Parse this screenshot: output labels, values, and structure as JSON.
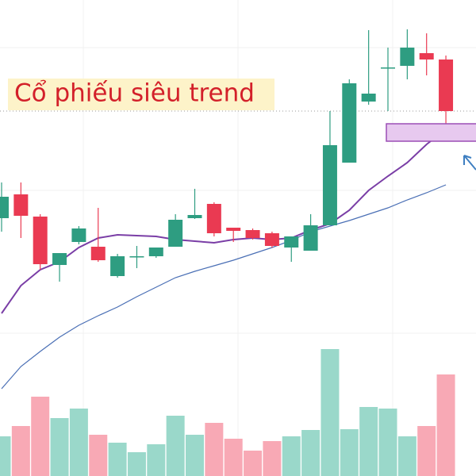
{
  "chart_data": {
    "type": "candlestick",
    "title": "Cổ phiếu siêu trend",
    "categories": [
      null,
      null,
      null,
      null,
      null,
      null,
      null,
      null,
      null,
      null,
      null,
      null,
      null,
      null,
      null,
      null,
      null,
      null,
      null,
      null,
      null,
      null,
      null,
      null
    ],
    "open": [
      32.5,
      35.5,
      32.7,
      26.6,
      29.5,
      28.9,
      25.2,
      27.7,
      27.7,
      28.9,
      32.5,
      34.3,
      31.3,
      31.0,
      30.6,
      28.8,
      28.4,
      31.6,
      39.5,
      47.2,
      51.5,
      51.7,
      53.3,
      52.5
    ],
    "high": [
      37.0,
      37.0,
      33.0,
      28.1,
      31.5,
      33.8,
      28.0,
      29.0,
      28.8,
      33.0,
      36.2,
      34.5,
      31.3,
      31.2,
      30.8,
      30.2,
      33.0,
      46.0,
      50.0,
      56.2,
      54.0,
      56.3,
      55.8,
      53.0
    ],
    "low": [
      30.8,
      30.0,
      26.0,
      24.5,
      29.2,
      27.0,
      25.0,
      26.2,
      27.5,
      28.9,
      32.4,
      30.2,
      29.5,
      29.8,
      28.8,
      27.0,
      28.4,
      31.6,
      39.5,
      46.8,
      46.0,
      50.0,
      50.5,
      43.5
    ],
    "close": [
      35.2,
      32.8,
      26.7,
      28.1,
      31.2,
      27.2,
      27.7,
      27.7,
      28.8,
      32.3,
      32.9,
      30.6,
      30.9,
      30.0,
      29.0,
      30.2,
      31.6,
      41.7,
      49.5,
      48.2,
      51.5,
      54.0,
      52.5,
      46.0
    ],
    "volume": [
      5.0,
      6.3,
      10.0,
      7.3,
      8.5,
      5.2,
      4.2,
      3.0,
      4.0,
      7.6,
      5.2,
      6.7,
      4.7,
      3.2,
      4.4,
      5.0,
      5.8,
      16.0,
      5.9,
      8.7,
      8.5,
      5.0,
      6.3,
      12.8
    ],
    "up_color": "#2e9d81",
    "down_color": "#ea3a52",
    "up_volume_color": "#9ad8ca",
    "down_volume_color": "#f8a9b5",
    "lines": [
      {
        "color": "#7a3ea6",
        "values": [
          20.5,
          24.0,
          26.0,
          27.0,
          28.8,
          30.0,
          30.4,
          30.3,
          30.2,
          29.8,
          29.6,
          29.4,
          29.8,
          30.0,
          29.8,
          30.0,
          31.0,
          31.8,
          33.5,
          36.0,
          37.8,
          39.5,
          41.8,
          43.7
        ]
      },
      {
        "color": "#4a6fb5",
        "values": [
          11.0,
          13.8,
          15.7,
          17.5,
          19.0,
          20.2,
          21.3,
          22.6,
          23.8,
          25.0,
          25.8,
          26.5,
          27.2,
          28.0,
          28.8,
          29.7,
          30.8,
          31.5,
          32.2,
          33.0,
          33.8,
          34.8,
          35.7,
          36.7
        ]
      }
    ],
    "ylim": [
      0,
      60
    ]
  }
}
